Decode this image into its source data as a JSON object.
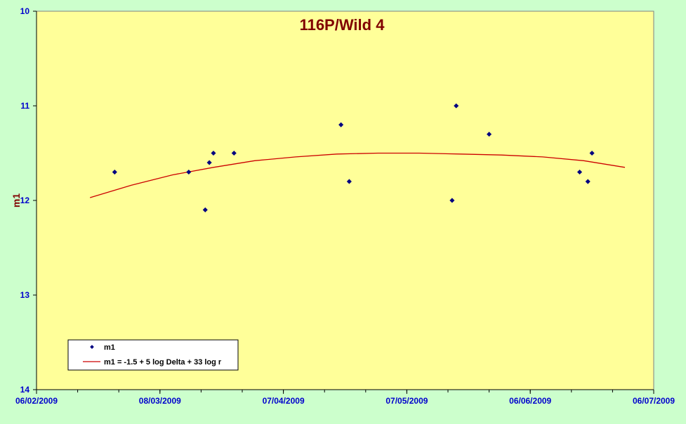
{
  "chart_data": {
    "type": "scatter",
    "title": "116P/Wild 4",
    "xlabel": "",
    "ylabel": "m1",
    "x_axis": {
      "min": "2009-02-06",
      "max": "2009-07-06",
      "ticks": [
        "06/02/2009",
        "08/03/2009",
        "07/04/2009",
        "07/05/2009",
        "06/06/2009",
        "06/07/2009"
      ],
      "minor_tick_interval_days": 10
    },
    "y_axis": {
      "min": 10,
      "max": 14,
      "reversed": true,
      "ticks": [
        10,
        11,
        12,
        13,
        14
      ]
    },
    "grid": false,
    "legend_position": "bottom-left",
    "colors": {
      "chart_background": "#ccffcc",
      "plot_background": "#ffff99",
      "title": "#800000",
      "tick_labels": "#0000cc",
      "marker": "#000080",
      "fit_line": "#cc0000"
    },
    "series": [
      {
        "name": "m1",
        "kind": "scatter",
        "points": [
          {
            "x": "2009-02-25",
            "y": 11.7
          },
          {
            "x": "2009-03-15",
            "y": 11.7
          },
          {
            "x": "2009-03-19",
            "y": 12.1
          },
          {
            "x": "2009-03-20",
            "y": 11.6
          },
          {
            "x": "2009-03-21",
            "y": 11.5
          },
          {
            "x": "2009-03-26",
            "y": 11.5
          },
          {
            "x": "2009-04-21",
            "y": 11.2
          },
          {
            "x": "2009-04-23",
            "y": 11.8
          },
          {
            "x": "2009-05-18",
            "y": 12.0
          },
          {
            "x": "2009-05-19",
            "y": 11.0
          },
          {
            "x": "2009-05-27",
            "y": 11.3
          },
          {
            "x": "2009-06-18",
            "y": 11.7
          },
          {
            "x": "2009-06-20",
            "y": 11.8
          },
          {
            "x": "2009-06-21",
            "y": 11.5
          }
        ]
      },
      {
        "name": "m1 = -1.5 + 5 log Delta + 33 log r",
        "kind": "line",
        "points": [
          {
            "x": "2009-02-19",
            "y": 11.97
          },
          {
            "x": "2009-03-01",
            "y": 11.84
          },
          {
            "x": "2009-03-11",
            "y": 11.73
          },
          {
            "x": "2009-03-21",
            "y": 11.65
          },
          {
            "x": "2009-03-31",
            "y": 11.58
          },
          {
            "x": "2009-04-10",
            "y": 11.54
          },
          {
            "x": "2009-04-20",
            "y": 11.51
          },
          {
            "x": "2009-04-30",
            "y": 11.5
          },
          {
            "x": "2009-05-10",
            "y": 11.5
          },
          {
            "x": "2009-05-20",
            "y": 11.51
          },
          {
            "x": "2009-05-30",
            "y": 11.52
          },
          {
            "x": "2009-06-09",
            "y": 11.54
          },
          {
            "x": "2009-06-19",
            "y": 11.58
          },
          {
            "x": "2009-06-29",
            "y": 11.65
          }
        ]
      }
    ]
  }
}
